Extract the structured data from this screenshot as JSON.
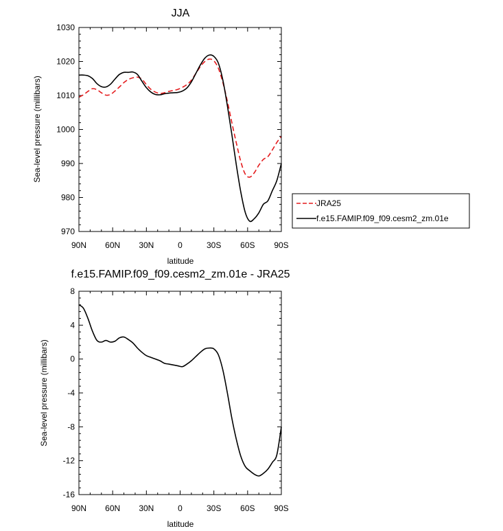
{
  "chart_data": [
    {
      "type": "line",
      "title": "JJA",
      "xlabel": "latitude",
      "ylabel": "Sea-level pressure (millibars)",
      "xlim": [
        -90,
        90
      ],
      "ylim": [
        970,
        1030
      ],
      "x_ticks": [
        -90,
        -60,
        -30,
        0,
        30,
        60,
        90
      ],
      "x_tick_labels": [
        "90N",
        "60N",
        "30N",
        "0",
        "30S",
        "60S",
        "90S"
      ],
      "y_ticks": [
        970,
        980,
        990,
        1000,
        1010,
        1020,
        1030
      ],
      "y_tick_labels": [
        "970",
        "980",
        "990",
        "1000",
        "1010",
        "1020",
        "1030"
      ],
      "legend": {
        "placement": "right"
      },
      "series": [
        {
          "name": "JRA25",
          "color": "#e41a1c",
          "dash": "dashed",
          "x": [
            -90,
            -86,
            -82,
            -78,
            -74,
            -70,
            -66,
            -62,
            -58,
            -54,
            -50,
            -46,
            -42,
            -38,
            -34,
            -30,
            -26,
            -22,
            -18,
            -14,
            -10,
            -6,
            -2,
            2,
            6,
            10,
            14,
            18,
            22,
            26,
            30,
            34,
            38,
            42,
            46,
            50,
            54,
            58,
            62,
            66,
            70,
            74,
            78,
            82,
            86,
            90
          ],
          "y": [
            1009.5,
            1010.2,
            1011.2,
            1012.0,
            1011.7,
            1010.8,
            1010.1,
            1010.3,
            1011.3,
            1012.5,
            1013.8,
            1014.7,
            1015.2,
            1015.4,
            1014.8,
            1013.2,
            1011.8,
            1011.0,
            1010.6,
            1010.8,
            1011.2,
            1011.5,
            1011.8,
            1012.4,
            1013.2,
            1014.5,
            1016.5,
            1018.5,
            1020.0,
            1020.7,
            1020.2,
            1018.0,
            1013.8,
            1008.3,
            1002.0,
            996.0,
            990.5,
            986.8,
            986.0,
            987.3,
            989.5,
            991.2,
            992.0,
            994.0,
            996.2,
            998.0
          ]
        },
        {
          "name": "f.e15.FAMIP.f09_f09.cesm2_zm.01e",
          "color": "#000000",
          "dash": "solid",
          "x": [
            -90,
            -86,
            -82,
            -78,
            -74,
            -70,
            -66,
            -62,
            -58,
            -54,
            -50,
            -46,
            -42,
            -38,
            -34,
            -30,
            -26,
            -22,
            -18,
            -14,
            -10,
            -6,
            -2,
            2,
            6,
            10,
            14,
            18,
            22,
            26,
            30,
            34,
            38,
            42,
            46,
            50,
            54,
            58,
            62,
            66,
            70,
            74,
            78,
            82,
            86,
            90
          ],
          "y": [
            1016.0,
            1016.0,
            1015.8,
            1015.0,
            1013.5,
            1012.6,
            1012.5,
            1013.3,
            1014.8,
            1016.2,
            1016.8,
            1016.8,
            1016.9,
            1016.2,
            1014.2,
            1012.3,
            1011.0,
            1010.3,
            1010.2,
            1010.5,
            1010.7,
            1010.8,
            1010.9,
            1011.3,
            1012.2,
            1014.0,
            1016.5,
            1019.0,
            1021.0,
            1021.9,
            1021.5,
            1019.5,
            1014.5,
            1007.0,
            998.5,
            989.5,
            981.5,
            975.5,
            973.0,
            973.8,
            975.5,
            978.0,
            979.0,
            982.0,
            985.0,
            990.0
          ]
        }
      ]
    },
    {
      "type": "line",
      "title": "f.e15.FAMIP.f09_f09.cesm2_zm.01e - JRA25",
      "xlabel": "latitude",
      "ylabel": "Sea-level pressure (millibars)",
      "xlim": [
        -90,
        90
      ],
      "ylim": [
        -16,
        8
      ],
      "x_ticks": [
        -90,
        -60,
        -30,
        0,
        30,
        60,
        90
      ],
      "x_tick_labels": [
        "90N",
        "60N",
        "30N",
        "0",
        "30S",
        "60S",
        "90S"
      ],
      "y_ticks": [
        -16,
        -12,
        -8,
        -4,
        0,
        4,
        8
      ],
      "y_tick_labels": [
        "-16",
        "-12",
        "-8",
        "-4",
        "0",
        "4",
        "8"
      ],
      "series": [
        {
          "color": "#000000",
          "dash": "solid",
          "x": [
            -90,
            -86,
            -82,
            -78,
            -74,
            -70,
            -66,
            -62,
            -58,
            -54,
            -50,
            -46,
            -42,
            -38,
            -34,
            -30,
            -26,
            -22,
            -18,
            -14,
            -10,
            -6,
            -2,
            2,
            6,
            10,
            14,
            18,
            22,
            26,
            30,
            34,
            38,
            42,
            46,
            50,
            54,
            58,
            62,
            66,
            70,
            74,
            78,
            82,
            86,
            90
          ],
          "y": [
            6.4,
            6.0,
            4.8,
            3.3,
            2.2,
            2.0,
            2.2,
            2.0,
            2.1,
            2.5,
            2.6,
            2.3,
            1.9,
            1.3,
            0.8,
            0.4,
            0.2,
            0.0,
            -0.2,
            -0.5,
            -0.6,
            -0.7,
            -0.8,
            -0.9,
            -0.6,
            -0.2,
            0.3,
            0.8,
            1.2,
            1.3,
            1.2,
            0.5,
            -1.3,
            -4.0,
            -7.0,
            -9.5,
            -11.5,
            -12.7,
            -13.2,
            -13.6,
            -13.8,
            -13.5,
            -13.0,
            -12.2,
            -11.3,
            -8.0
          ]
        }
      ]
    }
  ]
}
